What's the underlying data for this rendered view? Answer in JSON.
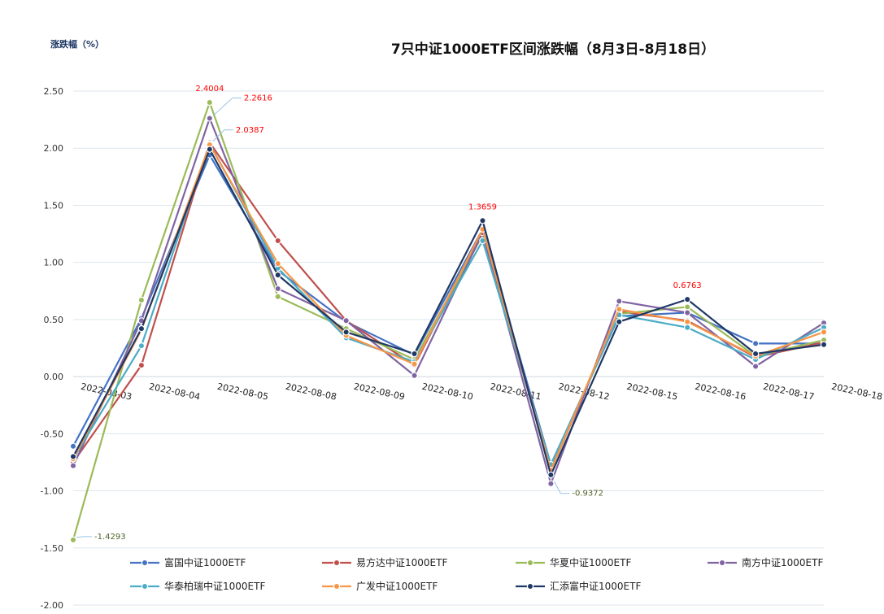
{
  "chart_data": {
    "type": "line",
    "title": "7只中证1000ETF区间涨跌幅（8月3日-8月18日）",
    "ylabel": "涨跌幅（%）",
    "xlabel": "",
    "ylim": [
      -2.0,
      2.5
    ],
    "yticks": [
      "2.50",
      "2.00",
      "1.50",
      "1.00",
      "0.50",
      "0.00",
      "-0.50",
      "-1.00",
      "-1.50",
      "-2.00"
    ],
    "grid": true,
    "legend_position": "bottom",
    "categories": [
      "2022-08-03",
      "2022-08-04",
      "2022-08-05",
      "2022-08-08",
      "2022-08-09",
      "2022-08-10",
      "2022-08-11",
      "2022-08-12",
      "2022-08-15",
      "2022-08-16",
      "2022-08-17",
      "2022-08-18"
    ],
    "series": [
      {
        "name": "富国中证1000ETF",
        "color": "#4472c4",
        "values": [
          -0.61,
          0.51,
          1.94,
          0.93,
          0.48,
          0.19,
          1.29,
          -0.77,
          0.53,
          0.56,
          0.29,
          0.29
        ]
      },
      {
        "name": "易方达中证1000ETF",
        "color": "#c0504d",
        "values": [
          -0.75,
          0.1,
          2.05,
          1.19,
          0.49,
          0.1,
          1.26,
          -0.82,
          0.57,
          0.49,
          0.17,
          0.3
        ]
      },
      {
        "name": "华夏中证1000ETF",
        "color": "#9bbb59",
        "values": [
          -1.4293,
          0.67,
          2.4004,
          0.7,
          0.42,
          0.15,
          1.24,
          -0.8,
          0.55,
          0.61,
          0.18,
          0.32
        ]
      },
      {
        "name": "南方中证1000ETF",
        "color": "#8064a2",
        "values": [
          -0.78,
          0.49,
          2.2616,
          0.77,
          0.49,
          0.01,
          1.26,
          -0.9372,
          0.66,
          0.56,
          0.09,
          0.47
        ]
      },
      {
        "name": "华泰柏瑞中证1000ETF",
        "color": "#4bacc6",
        "values": [
          -0.72,
          0.27,
          2.0387,
          0.95,
          0.34,
          0.13,
          1.19,
          -0.77,
          0.54,
          0.43,
          0.15,
          0.43
        ]
      },
      {
        "name": "广发中证1000ETF",
        "color": "#f79646",
        "values": [
          -0.72,
          0.41,
          2.03,
          0.99,
          0.36,
          0.11,
          1.29,
          -0.82,
          0.59,
          0.48,
          0.18,
          0.39
        ]
      },
      {
        "name": "汇添富中证1000ETF",
        "color": "#1f3864",
        "values": [
          -0.7,
          0.42,
          1.99,
          0.89,
          0.39,
          0.2,
          1.3659,
          -0.86,
          0.48,
          0.6763,
          0.2,
          0.28
        ]
      }
    ],
    "annotations": [
      {
        "text": "2.4004",
        "series": 2,
        "index": 2,
        "color": "#ff0000"
      },
      {
        "text": "2.2616",
        "series": 3,
        "index": 2,
        "color": "#ff0000"
      },
      {
        "text": "2.0387",
        "series": 4,
        "index": 2,
        "color": "#ff0000"
      },
      {
        "text": "1.3659",
        "series": 6,
        "index": 6,
        "color": "#ff0000"
      },
      {
        "text": "0.6763",
        "series": 6,
        "index": 9,
        "color": "#ff0000"
      },
      {
        "text": "-1.4293",
        "series": 2,
        "index": 0,
        "color": "#4f6228"
      },
      {
        "text": "-0.9372",
        "series": 3,
        "index": 7,
        "color": "#4f6228"
      }
    ]
  }
}
